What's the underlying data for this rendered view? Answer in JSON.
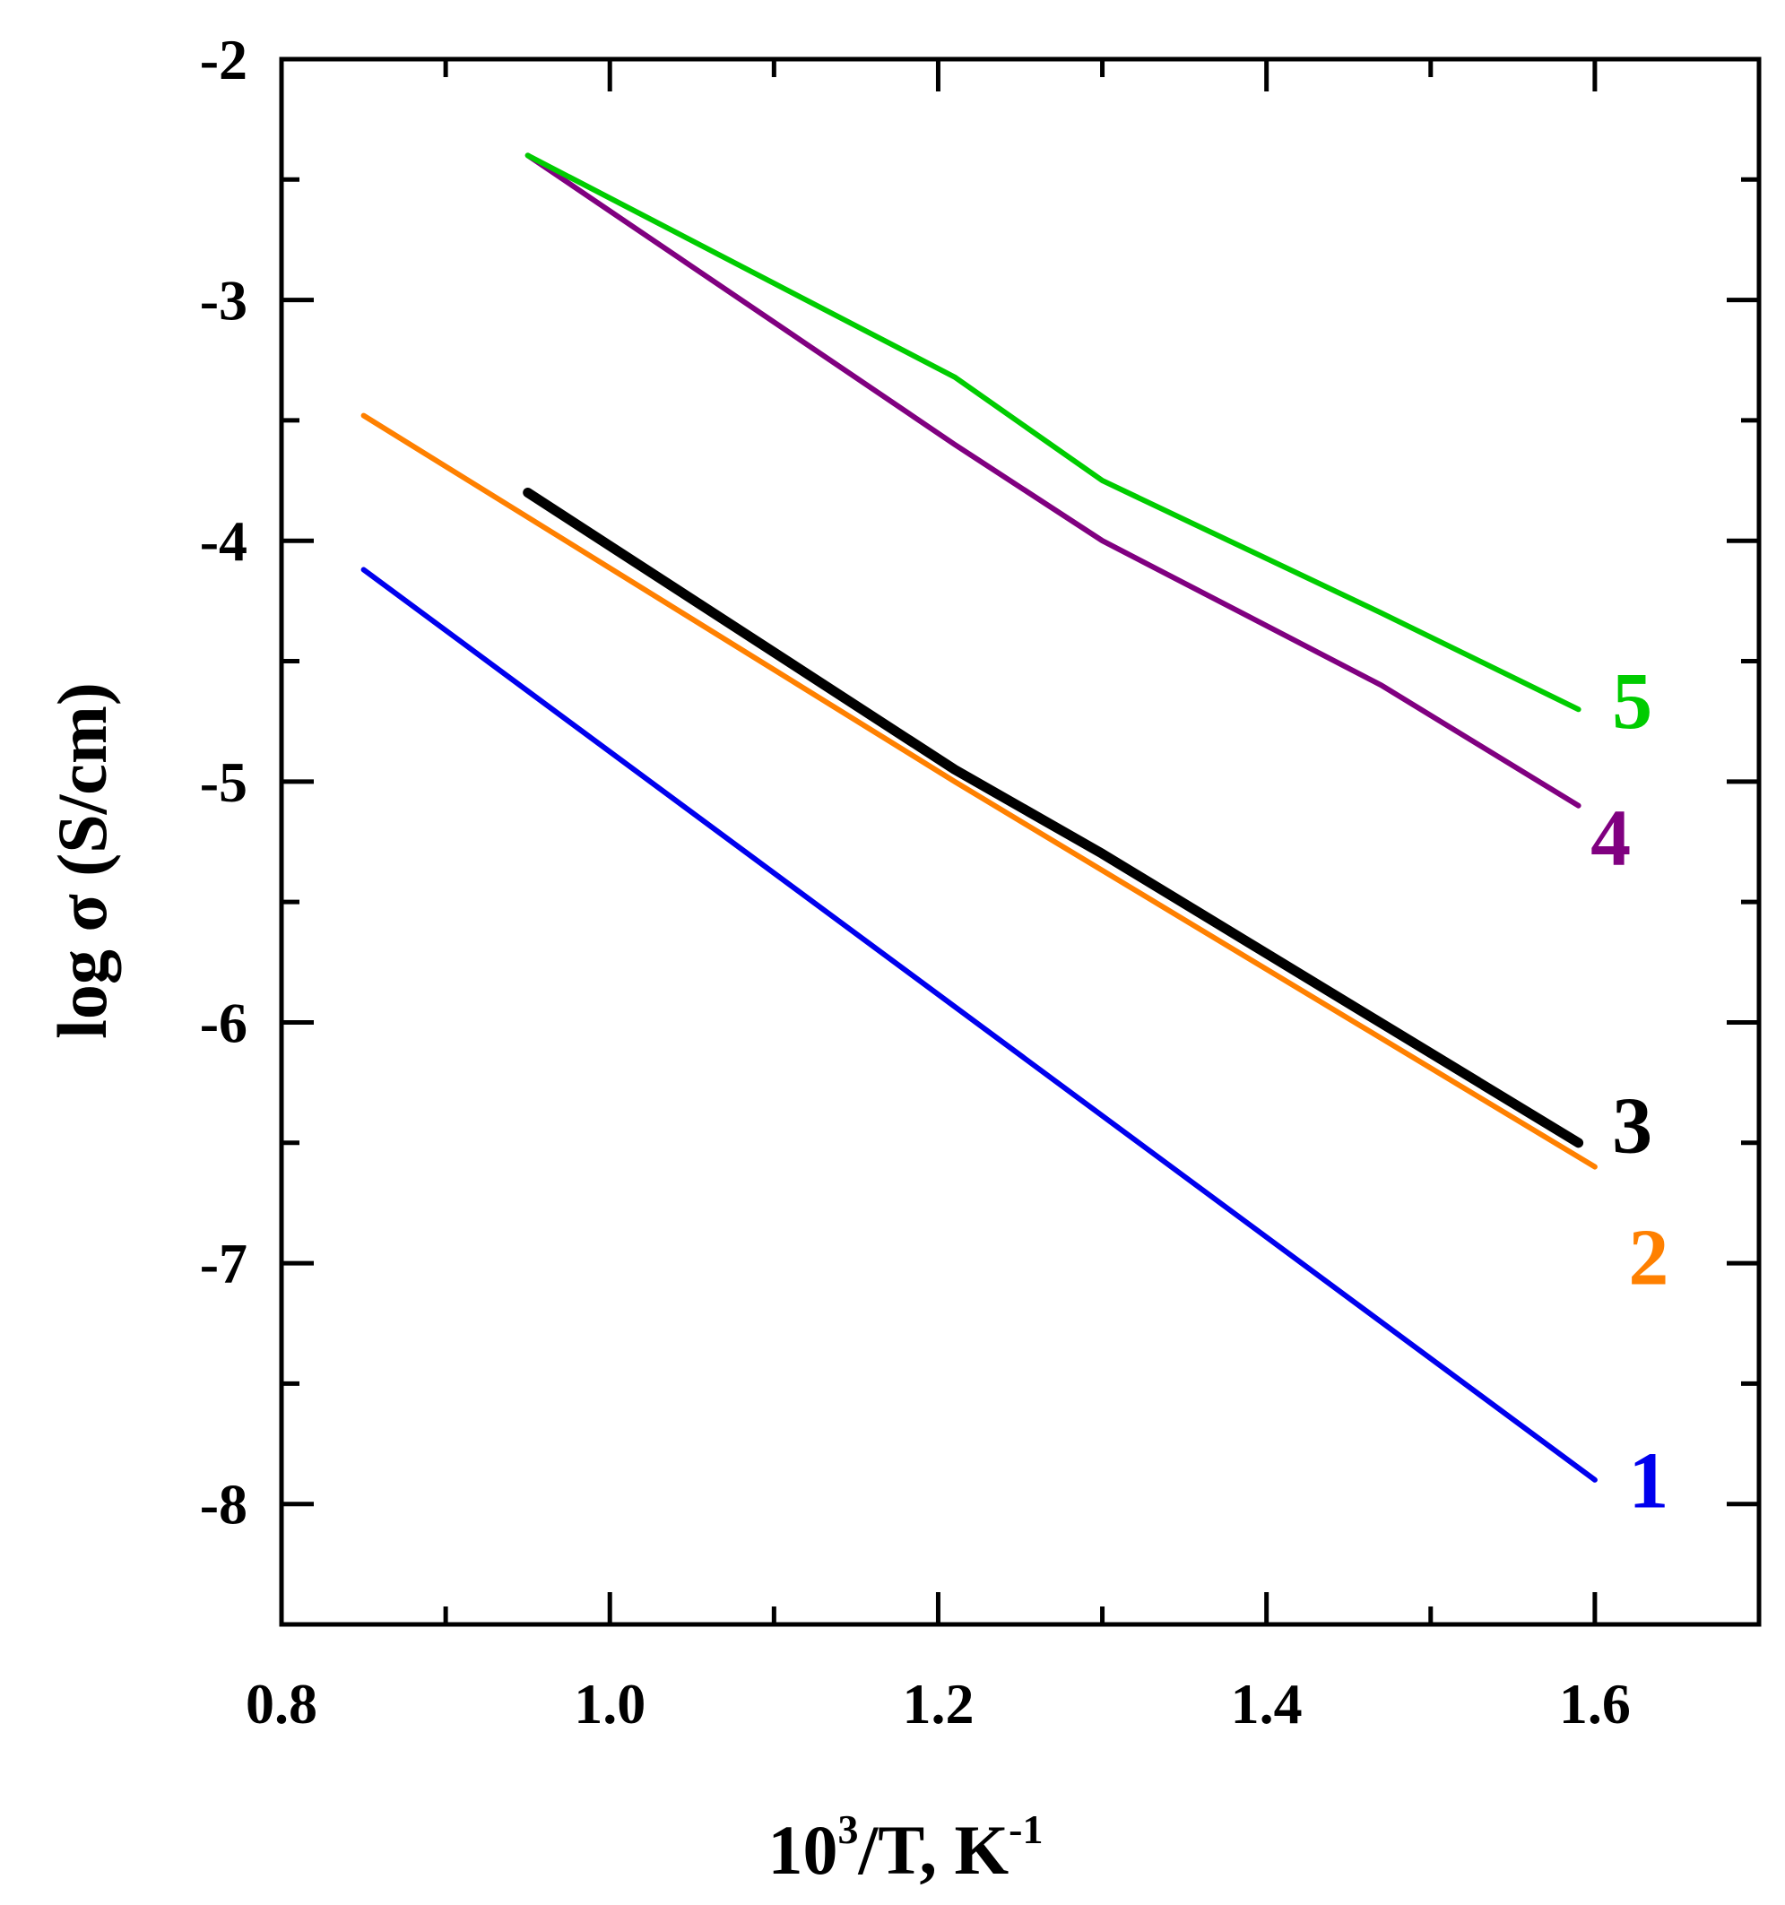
{
  "chart_data": {
    "type": "line",
    "title": "",
    "xlabel": "10³/T, K⁻¹",
    "xlabel_parts": {
      "base": "10",
      "sup1": "3",
      "mid": "/T, K",
      "sup2": "-1"
    },
    "ylabel": "log σ (S/cm)",
    "xlim": [
      0.8,
      1.7
    ],
    "ylim": [
      -8.5,
      -2
    ],
    "x_tick_labels": [
      "0.8",
      "1.0",
      "1.2",
      "1.4",
      "1.6"
    ],
    "x_major_ticks": [
      0.8,
      1.0,
      1.2,
      1.4,
      1.6
    ],
    "x_minor_ticks": [
      0.9,
      1.1,
      1.3,
      1.5
    ],
    "y_tick_labels": [
      "-2",
      "-3",
      "-4",
      "-5",
      "-6",
      "-7",
      "-8"
    ],
    "y_major_ticks": [
      -2,
      -3,
      -4,
      -5,
      -6,
      -7,
      -8
    ],
    "y_minor_ticks": [
      -2.5,
      -3.5,
      -4.5,
      -5.5,
      -6.5,
      -7.5
    ],
    "grid": false,
    "series": [
      {
        "name": "1",
        "label": "1",
        "color": "#0000ee",
        "x": [
          0.85,
          1.6
        ],
        "y": [
          -4.12,
          -7.9
        ]
      },
      {
        "name": "2",
        "label": "2",
        "color": "#ff8000",
        "x": [
          0.85,
          1.21,
          1.6
        ],
        "y": [
          -3.48,
          -5.0,
          -6.6
        ]
      },
      {
        "name": "3",
        "label": "3",
        "color": "#000000",
        "x": [
          0.95,
          1.21,
          1.3,
          1.59
        ],
        "y": [
          -3.8,
          -4.95,
          -5.3,
          -6.5
        ]
      },
      {
        "name": "4",
        "label": "4",
        "color": "#800080",
        "x": [
          0.95,
          1.21,
          1.3,
          1.47,
          1.59
        ],
        "y": [
          -2.4,
          -3.6,
          -4.0,
          -4.6,
          -5.1
        ]
      },
      {
        "name": "5",
        "label": "5",
        "color": "#00cc00",
        "x": [
          0.95,
          1.21,
          1.3,
          1.47,
          1.59
        ],
        "y": [
          -2.4,
          -3.32,
          -3.75,
          -4.3,
          -4.7
        ]
      }
    ]
  }
}
